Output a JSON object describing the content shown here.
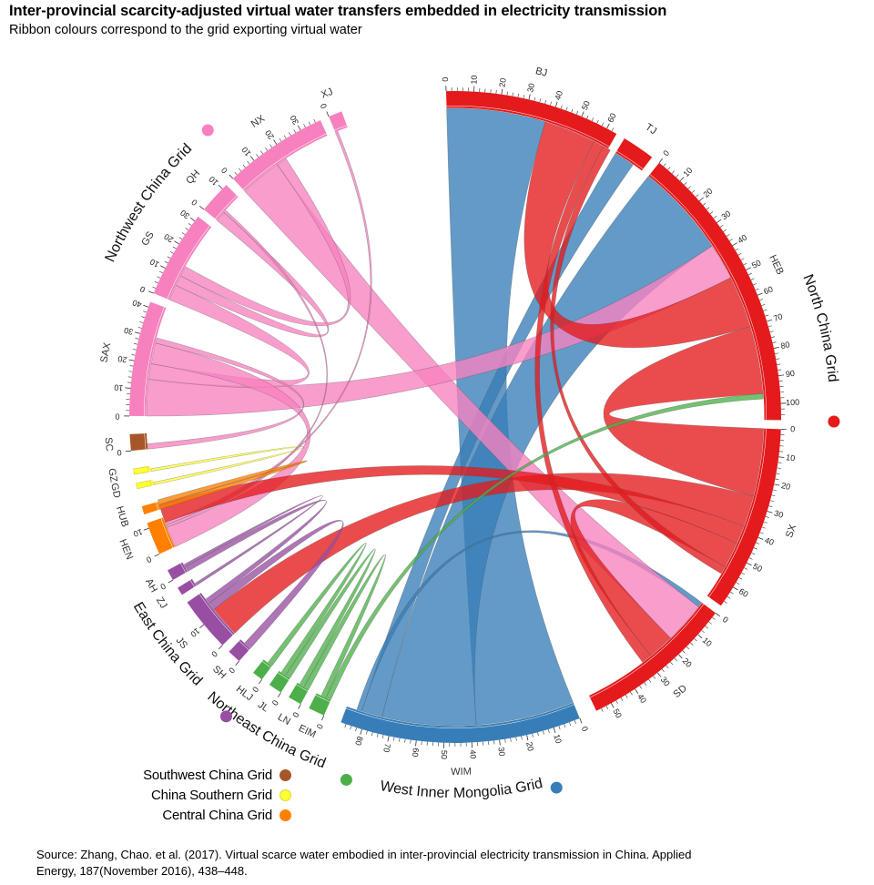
{
  "title": "Inter-provincial scarcity-adjusted virtual water transfers embedded in electricity transmission",
  "subtitle": "Ribbon colours correspond to the grid exporting virtual water",
  "source": "Source: Zhang, Chao. et al. (2017). Virtual scarce water embodied in inter-provincial electricity transmission in China. Applied Energy, 187(November 2016), 438–448.",
  "grids": [
    {
      "id": "north",
      "name": "North China Grid",
      "color": "#e41a1c"
    },
    {
      "id": "westim",
      "name": "West Inner Mongolia Grid",
      "color": "#377eb8"
    },
    {
      "id": "northeast",
      "name": "Northeast China Grid",
      "color": "#4daf4a"
    },
    {
      "id": "east",
      "name": "East China Grid",
      "color": "#984ea3"
    },
    {
      "id": "central",
      "name": "Central China Grid",
      "color": "#ff7f00"
    },
    {
      "id": "southern",
      "name": "China Southern Grid",
      "color": "#ffff33"
    },
    {
      "id": "southwest",
      "name": "Southwest China Grid",
      "color": "#a65628"
    },
    {
      "id": "northwest",
      "name": "Northwest China Grid",
      "color": "#f781bf"
    }
  ],
  "legend": [
    {
      "label": "Southwest China Grid",
      "color": "#a65628"
    },
    {
      "label": "China Southern Grid",
      "color": "#ffff33"
    },
    {
      "label": "Central China Grid",
      "color": "#ff7f00"
    }
  ],
  "chart_data": {
    "type": "chord",
    "nodes": [
      {
        "id": "BJ",
        "label": "BJ",
        "grid": "north",
        "size": 64,
        "ticks": [
          0,
          10,
          20,
          30,
          40,
          50,
          60
        ]
      },
      {
        "id": "TJ",
        "label": "TJ",
        "grid": "north",
        "size": 12,
        "ticks": []
      },
      {
        "id": "HEB",
        "label": "HEB",
        "grid": "north",
        "size": 106,
        "ticks": [
          0,
          10,
          20,
          30,
          40,
          50,
          60,
          70,
          80,
          90,
          100
        ]
      },
      {
        "id": "SX",
        "label": "SX",
        "grid": "north",
        "size": 68,
        "ticks": [
          0,
          10,
          20,
          30,
          40,
          50,
          60
        ]
      },
      {
        "id": "SD",
        "label": "SD",
        "grid": "north",
        "size": 56,
        "ticks": [
          0,
          10,
          20,
          30,
          40,
          50
        ]
      },
      {
        "id": "WIM",
        "label": "WIM",
        "grid": "westim",
        "size": 88,
        "ticks": [
          0,
          10,
          20,
          30,
          40,
          50,
          60,
          70,
          80
        ]
      },
      {
        "id": "EIM",
        "label": "EIM",
        "grid": "northeast",
        "size": 6,
        "ticks": [
          0
        ]
      },
      {
        "id": "LN",
        "label": "LN",
        "grid": "northeast",
        "size": 5,
        "ticks": [
          0
        ]
      },
      {
        "id": "JL",
        "label": "JL",
        "grid": "northeast",
        "size": 5,
        "ticks": [
          0
        ]
      },
      {
        "id": "HLJ",
        "label": "HLJ",
        "grid": "northeast",
        "size": 4,
        "ticks": [
          0
        ]
      },
      {
        "id": "SH",
        "label": "SH",
        "grid": "east",
        "size": 5,
        "ticks": [
          0
        ]
      },
      {
        "id": "JS",
        "label": "JS",
        "grid": "east",
        "size": 20,
        "ticks": [
          0,
          10
        ]
      },
      {
        "id": "ZJ",
        "label": "ZJ",
        "grid": "east",
        "size": 3,
        "ticks": []
      },
      {
        "id": "AH",
        "label": "AH",
        "grid": "east",
        "size": 4,
        "ticks": [
          0
        ]
      },
      {
        "id": "HEN",
        "label": "HEN",
        "grid": "central",
        "size": 12,
        "ticks": [
          0,
          10
        ]
      },
      {
        "id": "HUB",
        "label": "HUB",
        "grid": "central",
        "size": 3,
        "ticks": []
      },
      {
        "id": "GD",
        "label": "GD",
        "grid": "southern",
        "size": 2,
        "ticks": []
      },
      {
        "id": "GZ",
        "label": "GZ",
        "grid": "southern",
        "size": 2,
        "ticks": []
      },
      {
        "id": "SC",
        "label": "SC",
        "grid": "southwest",
        "size": 6,
        "ticks": [
          0
        ]
      },
      {
        "id": "SAX",
        "label": "SAX",
        "grid": "northwest",
        "size": 42,
        "ticks": [
          0,
          10,
          20,
          30,
          40
        ]
      },
      {
        "id": "GS",
        "label": "GS",
        "grid": "northwest",
        "size": 32,
        "ticks": [
          0,
          10,
          20,
          30
        ]
      },
      {
        "id": "QH",
        "label": "QH",
        "grid": "northwest",
        "size": 12,
        "ticks": [
          0,
          10
        ]
      },
      {
        "id": "NX",
        "label": "NX",
        "grid": "northwest",
        "size": 38,
        "ticks": [
          0,
          10,
          20,
          30
        ]
      },
      {
        "id": "XJ",
        "label": "XJ",
        "grid": "northwest",
        "size": 5,
        "ticks": [
          0
        ]
      }
    ],
    "flows": [
      {
        "from": "WIM",
        "to": "BJ",
        "value": 38
      },
      {
        "from": "WIM",
        "to": "HEB",
        "value": 36
      },
      {
        "from": "WIM",
        "to": "TJ",
        "value": 8
      },
      {
        "from": "WIM",
        "to": "SD",
        "value": 2
      },
      {
        "from": "NX",
        "to": "SD",
        "value": 16
      },
      {
        "from": "SAX",
        "to": "HEB",
        "value": 14
      },
      {
        "from": "GS",
        "to": "SAX",
        "value": 6
      },
      {
        "from": "GS",
        "to": "QH",
        "value": 4
      },
      {
        "from": "NX",
        "to": "GS",
        "value": 4
      },
      {
        "from": "SAX",
        "to": "HEN",
        "value": 8
      },
      {
        "from": "SAX",
        "to": "SC",
        "value": 2
      },
      {
        "from": "QH",
        "to": "HEN",
        "value": 1
      },
      {
        "from": "XJ",
        "to": "HEN",
        "value": 1
      },
      {
        "from": "HEB",
        "to": "BJ",
        "value": 20
      },
      {
        "from": "SX",
        "to": "HEB",
        "value": 26
      },
      {
        "from": "SX",
        "to": "JS",
        "value": 12
      },
      {
        "from": "SX",
        "to": "HEN",
        "value": 7
      },
      {
        "from": "SX",
        "to": "SD",
        "value": 10
      },
      {
        "from": "SD",
        "to": "BJ",
        "value": 4
      },
      {
        "from": "BJ",
        "to": "SX",
        "value": 3
      },
      {
        "from": "EIM",
        "to": "HEB",
        "value": 2
      },
      {
        "from": "EIM",
        "to": "LN",
        "value": 2
      },
      {
        "from": "JL",
        "to": "LN",
        "value": 2
      },
      {
        "from": "HLJ",
        "to": "JL",
        "value": 2
      },
      {
        "from": "JS",
        "to": "SH",
        "value": 3
      },
      {
        "from": "AH",
        "to": "JS",
        "value": 2
      },
      {
        "from": "ZJ",
        "to": "AH",
        "value": 1
      },
      {
        "from": "HUB",
        "to": "HEN",
        "value": 2
      },
      {
        "from": "GZ",
        "to": "GD",
        "value": 1
      }
    ]
  }
}
